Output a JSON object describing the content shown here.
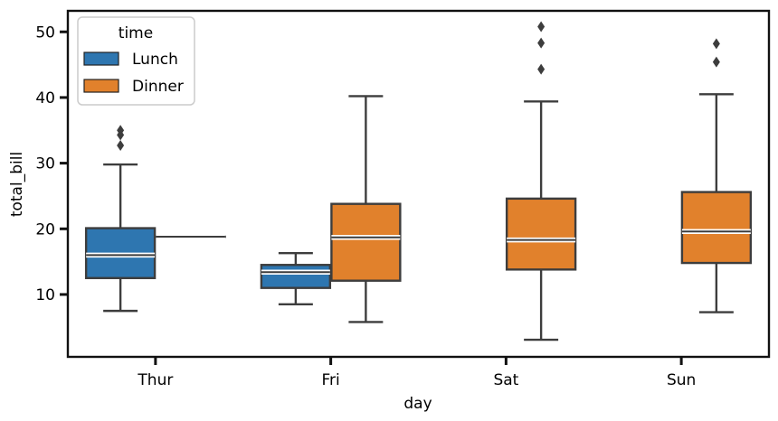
{
  "chart_data": {
    "type": "box",
    "title": "",
    "xlabel": "day",
    "ylabel": "total_bill",
    "categories": [
      "Thur",
      "Fri",
      "Sat",
      "Sun"
    ],
    "y_ticks": [
      10,
      20,
      30,
      40,
      50
    ],
    "ylim": [
      0.5,
      53.2
    ],
    "legend": {
      "title": "time",
      "position": "upper-left"
    },
    "series": [
      {
        "name": "Lunch",
        "color": "#2e76b0",
        "boxes": [
          {
            "category": "Thur",
            "whisker_low": 7.5,
            "q1": 12.5,
            "median": 16.0,
            "q3": 20.1,
            "whisker_high": 29.8,
            "outliers": [
              32.7,
              34.3,
              35.0
            ]
          },
          {
            "category": "Fri",
            "whisker_low": 8.5,
            "q1": 11.0,
            "median": 13.4,
            "q3": 14.5,
            "whisker_high": 16.3,
            "outliers": []
          }
        ]
      },
      {
        "name": "Dinner",
        "color": "#e1812c",
        "boxes": [
          {
            "category": "Thur",
            "whisker_low": 18.8,
            "q1": 18.8,
            "median": 18.8,
            "q3": 18.8,
            "whisker_high": 18.8,
            "outliers": []
          },
          {
            "category": "Fri",
            "whisker_low": 5.8,
            "q1": 12.1,
            "median": 18.7,
            "q3": 23.8,
            "whisker_high": 40.2,
            "outliers": []
          },
          {
            "category": "Sat",
            "whisker_low": 3.1,
            "q1": 13.8,
            "median": 18.3,
            "q3": 24.6,
            "whisker_high": 39.4,
            "outliers": [
              44.3,
              48.3,
              50.8
            ]
          },
          {
            "category": "Sun",
            "whisker_low": 7.3,
            "q1": 14.8,
            "median": 19.6,
            "q3": 25.6,
            "whisker_high": 40.5,
            "outliers": [
              45.4,
              48.2
            ]
          }
        ]
      }
    ]
  }
}
